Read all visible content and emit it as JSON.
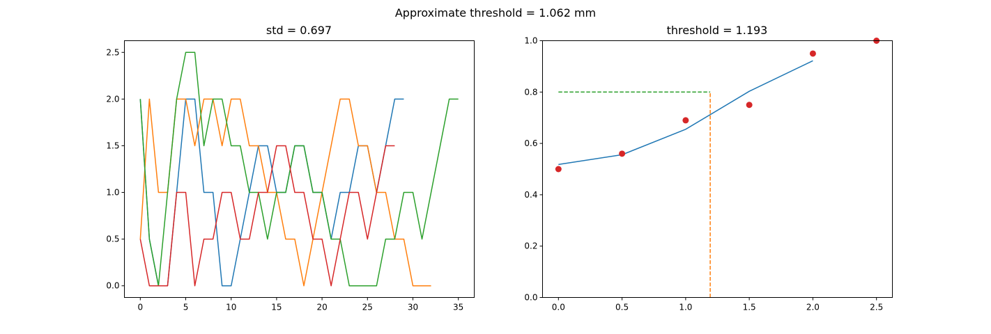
{
  "figure": {
    "suptitle": "Approximate threshold = 1.062 mm"
  },
  "chart_data": [
    {
      "type": "line",
      "title": "std = 0.697",
      "xlabel": "",
      "ylabel": "",
      "xlim": [
        -1.75,
        36.75
      ],
      "ylim": [
        -0.125,
        2.625
      ],
      "xticks": [
        0,
        5,
        10,
        15,
        20,
        25,
        30,
        35
      ],
      "yticks": [
        0.0,
        0.5,
        1.0,
        1.5,
        2.0,
        2.5
      ],
      "grid": false,
      "series": [
        {
          "color": "#1f77b4",
          "values": [
            2,
            0.5,
            0,
            0,
            1,
            2,
            2,
            1,
            1,
            0,
            0,
            0.5,
            1,
            1.5,
            1.5,
            1,
            1,
            1.5,
            1.5,
            1,
            1,
            0.5,
            1,
            1,
            1.5,
            1.5,
            1,
            1.5,
            2,
            2
          ]
        },
        {
          "color": "#ff7f0e",
          "values": [
            0.5,
            2,
            1,
            1,
            2,
            2,
            1.5,
            2,
            2,
            1.5,
            2,
            2,
            1.5,
            1.5,
            1,
            1,
            0.5,
            0.5,
            0,
            0.5,
            1,
            1.5,
            2,
            2,
            1.5,
            1.5,
            1,
            1,
            0.5,
            0.5,
            0,
            0,
            0
          ]
        },
        {
          "color": "#2ca02c",
          "values": [
            2,
            0.5,
            0,
            1,
            2,
            2.5,
            2.5,
            1.5,
            2,
            2,
            1.5,
            1.5,
            1,
            1,
            0.5,
            1,
            1,
            1.5,
            1.5,
            1,
            1,
            0.5,
            0.5,
            0,
            0,
            0,
            0,
            0.5,
            0.5,
            1,
            1,
            0.5,
            1,
            1.5,
            2,
            2
          ]
        },
        {
          "color": "#d62728",
          "values": [
            0.5,
            0,
            0,
            0,
            1,
            1,
            0,
            0.5,
            0.5,
            1,
            1,
            0.5,
            0.5,
            1,
            1,
            1.5,
            1.5,
            1,
            1,
            0.5,
            0.5,
            0,
            0.5,
            1,
            1,
            0.5,
            1,
            1.5,
            1.5
          ]
        }
      ]
    },
    {
      "type": "scatter",
      "title": "threshold = 1.193",
      "xlabel": "",
      "ylabel": "",
      "xlim": [
        -0.125,
        2.625
      ],
      "ylim": [
        0.0,
        1.0
      ],
      "xticks": [
        0.0,
        0.5,
        1.0,
        1.5,
        2.0,
        2.5
      ],
      "yticks": [
        0.0,
        0.2,
        0.4,
        0.6,
        0.8,
        1.0
      ],
      "grid": false,
      "points": {
        "color": "#d62728",
        "x": [
          0.0,
          0.5,
          1.0,
          1.5,
          2.0,
          2.5
        ],
        "y": [
          0.5,
          0.56,
          0.69,
          0.75,
          0.95,
          1.0
        ]
      },
      "fit_line": {
        "color": "#1f77b4",
        "x": [
          0.0,
          0.5,
          1.0,
          1.5,
          2.0
        ],
        "y": [
          0.518,
          0.556,
          0.655,
          0.803,
          0.922
        ]
      },
      "threshold_lines": {
        "horizontal": {
          "color": "#2ca02c",
          "y": 0.8,
          "x_from": 0.0,
          "x_to": 1.193
        },
        "vertical": {
          "color": "#ff7f0e",
          "x": 1.193,
          "y_from": 0.0,
          "y_to": 0.8
        }
      }
    }
  ]
}
